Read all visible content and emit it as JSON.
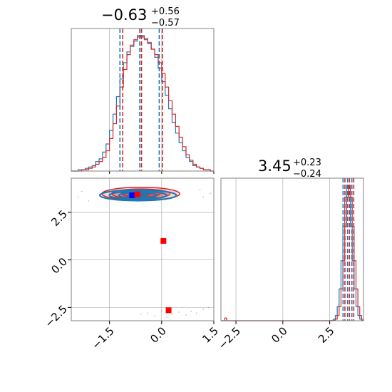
{
  "colors": {
    "series_blue": "#1f77b4",
    "series_red": "#d62728",
    "grid": "#b0b0b0",
    "frame": "#808080",
    "truth_blue": "#0000ff",
    "truth_red": "#ff0000"
  },
  "chart_data": {
    "type": "corner",
    "grid": true,
    "parameters": [
      {
        "title_value": "−0.63",
        "title_upper": "+0.56",
        "title_lower": "−0.57"
      },
      {
        "title_value": "3.45",
        "title_upper": "+0.23",
        "title_lower": "−0.24"
      }
    ],
    "axes": {
      "x0_range": [
        -2.6,
        1.5
      ],
      "x0_ticks": [
        -1.5,
        0.0,
        1.5
      ],
      "x0_tick_labels": [
        "−1.5",
        "0.0",
        "1.5"
      ],
      "x1_range": [
        -3.3,
        4.3
      ],
      "x1_ticks": [
        -2.5,
        0.0,
        2.5
      ],
      "x1_tick_labels": [
        "−2.5",
        "0.0",
        "2.5"
      ],
      "y_range": [
        -3.2,
        4.3
      ],
      "y_ticks": [
        -2.5,
        0.0,
        2.5
      ],
      "y_tick_labels": [
        "−2.5",
        "0.0",
        "2.5"
      ]
    },
    "histograms": [
      {
        "panel": "x0",
        "bin_start": -2.6,
        "bin_width": 0.1,
        "series": [
          {
            "color": "series_blue",
            "quantiles": [
              -1.2,
              -0.63,
              -0.07
            ],
            "counts": [
              0,
              0,
              1,
              1,
              2,
              3,
              4,
              7,
              9,
              14,
              20,
              30,
              42,
              55,
              68,
              80,
              88,
              92,
              96,
              99,
              100,
              98,
              95,
              90,
              84,
              76,
              66,
              56,
              46,
              36,
              28,
              21,
              15,
              10,
              7,
              4,
              3,
              2,
              1,
              1,
              0
            ]
          },
          {
            "color": "series_red",
            "quantiles": [
              -1.12,
              -0.58,
              0.02
            ],
            "counts": [
              0,
              0,
              0,
              1,
              1,
              2,
              3,
              5,
              7,
              10,
              15,
              24,
              35,
              48,
              62,
              75,
              86,
              93,
              97,
              100,
              99,
              97,
              94,
              90,
              86,
              80,
              72,
              62,
              52,
              42,
              33,
              25,
              18,
              12,
              8,
              5,
              3,
              2,
              1,
              1,
              0
            ]
          }
        ]
      },
      {
        "panel": "x1",
        "bin_start": -3.3,
        "bin_width": 0.1,
        "series": [
          {
            "color": "series_blue",
            "quantiles": [
              3.21,
              3.45,
              3.68
            ]
          },
          {
            "color": "series_red",
            "quantiles": [
              3.31,
              3.55,
              3.78
            ]
          }
        ]
      }
    ],
    "contours": [
      {
        "color": "series_red",
        "center": [
          -0.6,
          3.48
        ],
        "sigma": [
          0.56,
          0.17
        ],
        "levels": [
          0.5,
          1.0,
          1.5,
          2.0
        ]
      },
      {
        "color": "series_blue",
        "center": [
          -0.68,
          3.4
        ],
        "sigma": [
          0.55,
          0.14
        ],
        "levels": [
          0.5,
          1.0,
          1.5,
          2.0
        ]
      }
    ],
    "truth_markers": [
      {
        "color": "truth_blue",
        "x": -0.85,
        "y": 3.4
      },
      {
        "color": "truth_red",
        "x": -0.7,
        "y": 3.45
      },
      {
        "color": "truth_red",
        "x": 0.05,
        "y": 1.0
      },
      {
        "color": "truth_red",
        "x": 0.2,
        "y": -2.65
      }
    ],
    "outlier_points": [
      [
        -0.4,
        -2.8
      ],
      [
        -0.2,
        -2.95
      ],
      [
        0.0,
        -2.7
      ],
      [
        0.3,
        -2.85
      ],
      [
        0.5,
        -2.75
      ],
      [
        0.7,
        -2.9
      ],
      [
        1.0,
        -2.8
      ],
      [
        1.2,
        -2.6
      ],
      [
        -0.6,
        -2.85
      ],
      [
        0.15,
        -3.0
      ],
      [
        0.85,
        -2.7
      ],
      [
        1.35,
        -2.5
      ],
      [
        -2.3,
        3.6
      ],
      [
        -2.1,
        3.1
      ],
      [
        1.2,
        3.3
      ],
      [
        1.1,
        3.7
      ],
      [
        1.4,
        3.5
      ],
      [
        -2.4,
        3.3
      ]
    ]
  }
}
